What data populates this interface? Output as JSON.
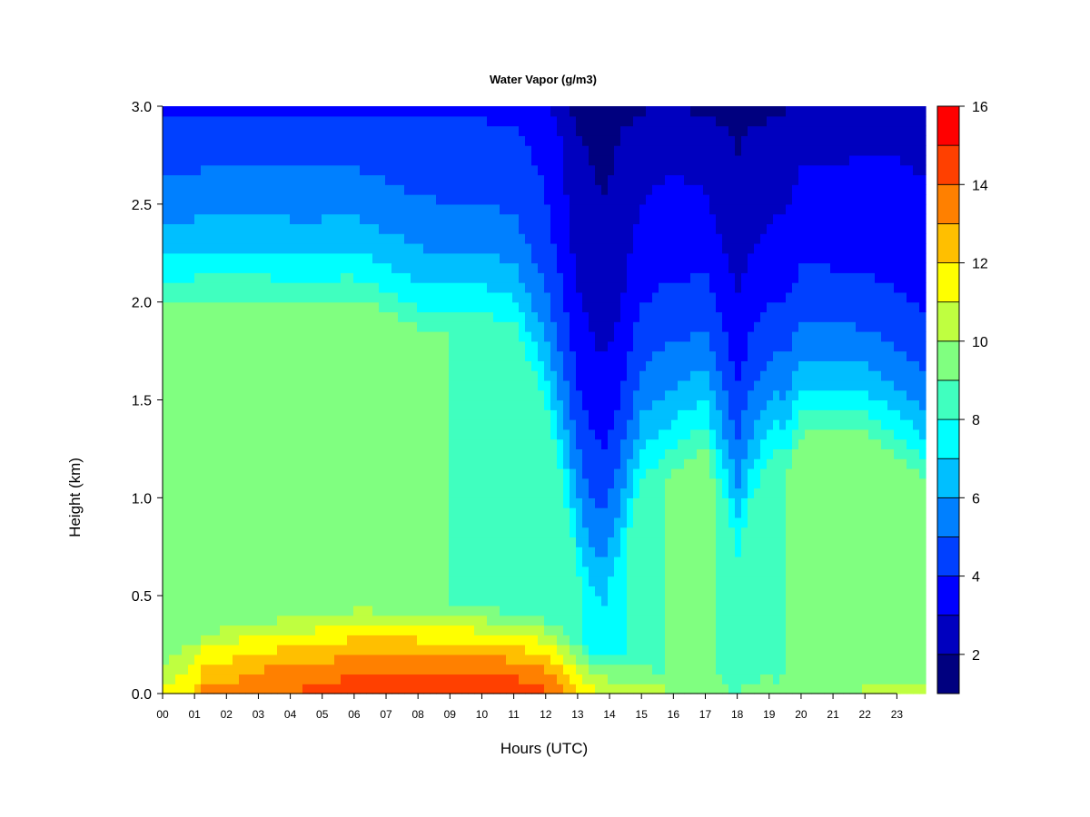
{
  "chart_data": {
    "type": "heatmap",
    "title": "Water Vapor (g/m3)",
    "xlabel": "Hours (UTC)",
    "ylabel": "Height (km)",
    "x_range": [
      0,
      23.9
    ],
    "y_range": [
      0.0,
      3.0
    ],
    "x_ticks": [
      "00",
      "01",
      "02",
      "03",
      "04",
      "05",
      "06",
      "07",
      "08",
      "09",
      "10",
      "11",
      "12",
      "13",
      "14",
      "15",
      "16",
      "17",
      "18",
      "19",
      "20",
      "21",
      "22",
      "23"
    ],
    "y_ticks": [
      "0.0",
      "0.5",
      "1.0",
      "1.5",
      "2.0",
      "2.5",
      "3.0"
    ],
    "colorbar": {
      "range": [
        1,
        16
      ],
      "levels": [
        1,
        2,
        3,
        4,
        5,
        6,
        7,
        8,
        9,
        10,
        11,
        12,
        13,
        14,
        15,
        16
      ],
      "tick_labels": [
        "2",
        "4",
        "6",
        "8",
        "10",
        "12",
        "14",
        "16"
      ],
      "colors": [
        "#00007F",
        "#0000BF",
        "#0000FF",
        "#0040FF",
        "#0080FF",
        "#00BFFF",
        "#00FFFF",
        "#40FFBF",
        "#80FF80",
        "#BFFF40",
        "#FFFF00",
        "#FFBF00",
        "#FF8000",
        "#FF4000",
        "#FF0000",
        "#BF0000"
      ]
    },
    "column_profiles": {
      "hours": [
        0,
        1,
        1.3,
        2,
        3,
        4,
        5,
        6,
        7,
        8,
        9,
        10,
        11,
        12,
        12.5,
        13,
        13.4,
        13.8,
        14.2,
        15,
        15.8,
        16.2,
        17,
        17.6,
        18,
        18.4,
        19,
        19.3,
        19.5,
        20,
        21,
        22,
        23,
        23.9
      ],
      "surface_wv": [
        11.0,
        11.8,
        13.5,
        13.2,
        13.8,
        14.0,
        14.2,
        14.5,
        14.6,
        14.8,
        14.8,
        14.8,
        14.6,
        14.2,
        13.0,
        11.8,
        11.3,
        11.0,
        10.6,
        10.4,
        10.2,
        9.5,
        9.4,
        9.1,
        9.0,
        9.2,
        9.2,
        9.3,
        9.3,
        9.6,
        9.8,
        10.1,
        10.4,
        10.4
      ],
      "boundary_layer_top_km": [
        0.22,
        0.28,
        0.3,
        0.35,
        0.38,
        0.4,
        0.42,
        0.44,
        0.45,
        0.45,
        0.45,
        0.44,
        0.42,
        0.38,
        0.34,
        0.28,
        0.25,
        0.22,
        0.2,
        0.15,
        0.1,
        0.1,
        0.12,
        0.12,
        0.12,
        0.12,
        0.12,
        0.12,
        0.12,
        0.12,
        0.12,
        0.12,
        0.12,
        0.12
      ],
      "mid_layer_wv": [
        9.5,
        9.8,
        9.8,
        9.8,
        9.8,
        9.7,
        9.7,
        9.8,
        9.6,
        9.2,
        9.0,
        8.9,
        8.9,
        8.9,
        8.7,
        8.2,
        7.5,
        7.0,
        7.6,
        8.8,
        9.0,
        9.2,
        9.4,
        8.8,
        8.0,
        8.6,
        9.0,
        8.6,
        9.0,
        9.2,
        9.6,
        9.5,
        9.3,
        9.0
      ],
      "mid_layer_top_km": [
        1.95,
        1.95,
        1.95,
        1.95,
        1.95,
        1.95,
        1.95,
        1.95,
        1.9,
        1.85,
        1.85,
        1.85,
        1.8,
        1.4,
        1.0,
        0.6,
        0.45,
        0.45,
        0.55,
        1.0,
        1.1,
        1.15,
        1.2,
        0.9,
        0.7,
        0.9,
        1.1,
        1.2,
        1.1,
        1.3,
        1.3,
        1.3,
        1.2,
        1.1
      ],
      "top_wv": [
        3.2,
        3.2,
        3.3,
        3.3,
        3.3,
        3.3,
        3.3,
        3.3,
        3.3,
        3.3,
        3.3,
        3.3,
        3.3,
        3.2,
        2.2,
        1.3,
        1.1,
        1.0,
        1.2,
        1.8,
        2.0,
        2.0,
        1.6,
        1.2,
        1.0,
        1.2,
        1.5,
        1.7,
        1.8,
        2.0,
        2.3,
        2.5,
        2.6,
        2.6
      ],
      "upper_decay_scale_km": [
        0.55,
        0.55,
        0.55,
        0.55,
        0.55,
        0.55,
        0.55,
        0.55,
        0.55,
        0.55,
        0.55,
        0.55,
        0.55,
        0.6,
        0.85,
        1.05,
        1.15,
        1.15,
        1.05,
        0.85,
        0.8,
        0.75,
        0.8,
        0.95,
        1.05,
        0.95,
        0.8,
        0.75,
        0.75,
        0.7,
        0.6,
        0.55,
        0.55,
        0.55
      ]
    }
  }
}
